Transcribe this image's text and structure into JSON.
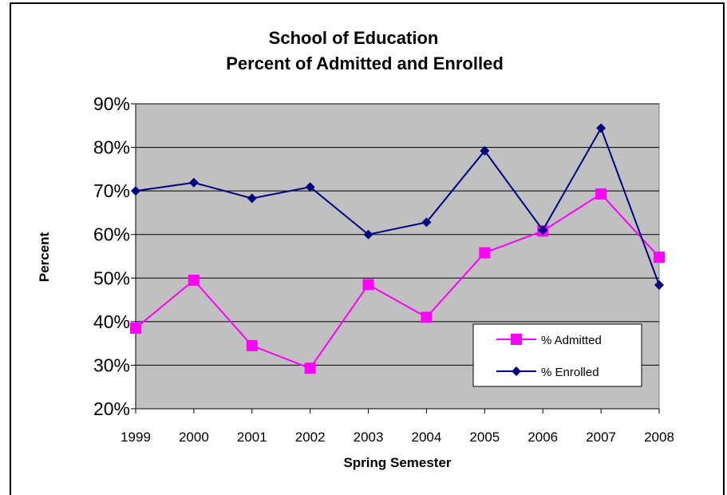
{
  "chart_data": {
    "type": "line",
    "title_lines": [
      "School of Education",
      "Percent of Admitted and Enrolled"
    ],
    "xlabel": "Spring Semester",
    "ylabel": "Percent",
    "categories": [
      "1999",
      "2000",
      "2001",
      "2002",
      "2003",
      "2004",
      "2005",
      "2006",
      "2007",
      "2008"
    ],
    "ylim": [
      20,
      90
    ],
    "yticks": [
      20,
      30,
      40,
      50,
      60,
      70,
      80,
      90
    ],
    "ytick_format": "{v}%",
    "grid": true,
    "legend": "lower-right",
    "series": [
      {
        "name": "% Admitted",
        "color": "#ff00ff",
        "marker": "square",
        "values": [
          38.5,
          49.5,
          34.5,
          29.3,
          48.5,
          41.0,
          55.8,
          60.8,
          69.3,
          54.8
        ]
      },
      {
        "name": "% Enrolled",
        "color": "#000080",
        "marker": "diamond",
        "values": [
          70.0,
          71.9,
          68.3,
          70.9,
          60.0,
          62.8,
          79.2,
          61.0,
          84.4,
          48.4
        ]
      }
    ]
  },
  "colors": {
    "plot_background": "#c0c0c0",
    "gridline": "#000000"
  }
}
